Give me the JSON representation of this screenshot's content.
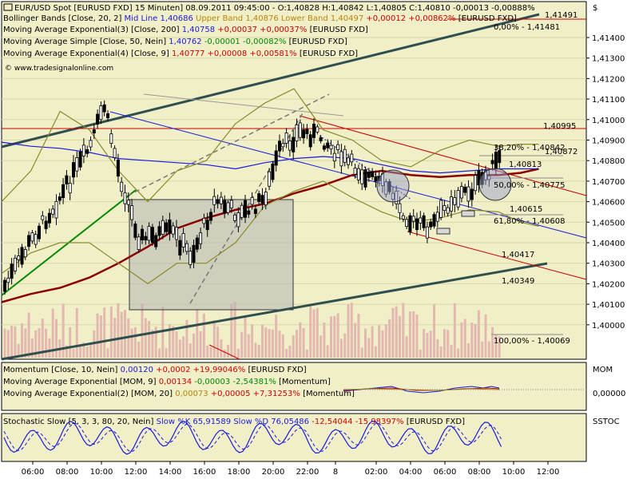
{
  "header": {
    "title": "EUR/USD Spot [EURUSD FXD]  15 Minuten] 08.09.2011 09:45:00 - O:1,40828 H:1,40842 L:1,40805 C:1,40810 -0,00013 -0,00888%",
    "legend": [
      {
        "prefix": "Bollinger Bands [Close, 20, 2] ",
        "parts": [
          {
            "text": "Mid Line 1,40686 ",
            "color": "#1a1adc"
          },
          {
            "text": "Upper Band 1,40876 ",
            "color": "#b8860b"
          },
          {
            "text": "Lower Band 1,40497 ",
            "color": "#b8860b"
          },
          {
            "text": "+0,00012 +0,00862% ",
            "color": "#cc0000"
          },
          {
            "text": "[EURUSD FXD]",
            "color": "#000000"
          }
        ]
      },
      {
        "prefix": "Moving Average Exponential(3) [Close, 200] ",
        "parts": [
          {
            "text": "1,40758 ",
            "color": "#1a1adc"
          },
          {
            "text": "+0,00037 +0,00037% ",
            "color": "#cc0000"
          },
          {
            "text": "[EURUSD FXD]",
            "color": "#000000"
          }
        ]
      },
      {
        "prefix": "Moving Average Simple [Close, 50, Nein] ",
        "parts": [
          {
            "text": "1,40762 ",
            "color": "#1a1adc"
          },
          {
            "text": "-0,00001 -0,00082% ",
            "color": "#008800"
          },
          {
            "text": "[EURUSD FXD]",
            "color": "#000000"
          }
        ]
      },
      {
        "prefix": "Moving Average Exponential(4) [Close, 9] ",
        "parts": [
          {
            "text": "1,40777 ",
            "color": "#cc0000"
          },
          {
            "text": "+0,00008 +0,00581% ",
            "color": "#cc0000"
          },
          {
            "text": "[EURUSD FXD]",
            "color": "#000000"
          }
        ]
      }
    ],
    "watermark": "© www.tradesignalonline.com",
    "currency": "$"
  },
  "price_axis_labels": [
    "1,41400",
    "1,41300",
    "1,41200",
    "1,41100",
    "1,41000",
    "1,40900",
    "1,40800",
    "1,40700",
    "1,40600",
    "1,40500",
    "1,40400",
    "1,40300",
    "1,40200",
    "1,40100",
    "1,40000"
  ],
  "price_badges": [
    {
      "text": "1,41491",
      "color": "#cc0000"
    },
    {
      "text": "1,40995",
      "color": "#cc0000"
    },
    {
      "text": "1,40872",
      "color": "#000000"
    },
    {
      "text": "1,40813",
      "color": "#cc0000"
    },
    {
      "text": "1,40615",
      "color": "#1a1adc"
    },
    {
      "text": "1,40417",
      "color": "#cc0000"
    },
    {
      "text": "1,40349",
      "color": "#000000"
    }
  ],
  "fib_labels": [
    {
      "text": "38,20% - 1,40842"
    },
    {
      "text": "50,00% - 1,40775"
    },
    {
      "text": "61,80% - 1,40608"
    },
    {
      "text": "100,00% - 1,40069"
    },
    {
      "text": "0,00% - 1,41481"
    }
  ],
  "momentum": {
    "title": "Momentum [Close, 10, Nein] ",
    "parts": [
      {
        "text": "0,00120 ",
        "color": "#1a1adc"
      },
      {
        "text": "+0,0002 +19,99046% ",
        "color": "#cc0000"
      },
      {
        "text": "[EURUSD FXD]",
        "color": "#000000"
      }
    ],
    "line2_prefix": "Moving Average Exponential [MOM, 9] ",
    "line2_parts": [
      {
        "text": "0,00134 ",
        "color": "#cc0000"
      },
      {
        "text": "-0,00003 -2,54381% ",
        "color": "#008800"
      },
      {
        "text": "[Momentum]",
        "color": "#000000"
      }
    ],
    "line3_prefix": "Moving Average Exponential(2) [MOM, 20] ",
    "line3_parts": [
      {
        "text": "0,00073 ",
        "color": "#b8860b"
      },
      {
        "text": "+0,00005 +7,31253% ",
        "color": "#cc0000"
      },
      {
        "text": "[Momentum]",
        "color": "#000000"
      }
    ],
    "axis_label": "MOM",
    "zero_label": "0,00000"
  },
  "stochastic": {
    "title": "Stochastic Slow [5, 3, 3, 80, 20, Nein] ",
    "parts": [
      {
        "text": "Slow %K 65,91589 ",
        "color": "#1a1adc"
      },
      {
        "text": "Slow %D 76,05486 ",
        "color": "#1a1adc"
      },
      {
        "text": "-12,54044 -15,98397% ",
        "color": "#cc0000"
      },
      {
        "text": "[EURUSD FXD]",
        "color": "#000000"
      }
    ],
    "axis_label": "SSTOC"
  },
  "time_axis": [
    "06:00",
    "08:00",
    "10:00",
    "12:00",
    "14:00",
    "16:00",
    "18:00",
    "20:00",
    "22:00",
    "8",
    "02:00",
    "04:00",
    "06:00",
    "08:00",
    "10:00",
    "12:00"
  ],
  "chart_data": {
    "type": "line",
    "series": [
      {
        "name": "Moving Average Exponential(3) [Close, 200]",
        "color": "#8b0000",
        "x": [
          0,
          8,
          16,
          24,
          32,
          40,
          48,
          56,
          64,
          72,
          80,
          88,
          96,
          104,
          112,
          120,
          128,
          136,
          142,
          147
        ],
        "values": [
          1.4011,
          1.4015,
          1.4018,
          1.4023,
          1.403,
          1.4038,
          1.4047,
          1.4052,
          1.4056,
          1.4059,
          1.4064,
          1.4068,
          1.4073,
          1.4075,
          1.4073,
          1.4072,
          1.4073,
          1.4073,
          1.4074,
          1.4076
        ]
      },
      {
        "name": "Moving Average Simple [Close, 50]",
        "color": "#1a1adc",
        "x": [
          0,
          8,
          16,
          24,
          32,
          40,
          48,
          56,
          64,
          72,
          80,
          88,
          96,
          104,
          112,
          120,
          128,
          136,
          142,
          147
        ],
        "values": [
          1.4089,
          1.4087,
          1.4086,
          1.4084,
          1.4081,
          1.408,
          1.4079,
          1.4078,
          1.4076,
          1.4079,
          1.4081,
          1.4082,
          1.4081,
          1.4078,
          1.4075,
          1.4074,
          1.4075,
          1.4076,
          1.4076,
          1.4076
        ]
      },
      {
        "name": "Bollinger Upper Band",
        "color": "#8b8b2a",
        "x": [
          0,
          8,
          16,
          24,
          32,
          40,
          48,
          56,
          64,
          72,
          80,
          88,
          96,
          104,
          112,
          120,
          128,
          136,
          142,
          147
        ],
        "values": [
          1.406,
          1.4075,
          1.4104,
          1.4095,
          1.4075,
          1.406,
          1.4075,
          1.408,
          1.4098,
          1.4108,
          1.4115,
          1.4095,
          1.409,
          1.408,
          1.4077,
          1.4085,
          1.409,
          1.4087,
          1.4088,
          1.4088
        ]
      },
      {
        "name": "Bollinger Lower Band",
        "color": "#8b8b2a",
        "x": [
          0,
          8,
          16,
          24,
          32,
          40,
          48,
          56,
          64,
          72,
          80,
          88,
          96,
          104,
          112,
          120,
          128,
          136,
          142,
          147
        ],
        "values": [
          1.4025,
          1.4035,
          1.404,
          1.404,
          1.403,
          1.402,
          1.403,
          1.403,
          1.404,
          1.4058,
          1.4065,
          1.407,
          1.4062,
          1.4055,
          1.405,
          1.4052,
          1.4056,
          1.4055,
          1.405,
          1.4048
        ]
      }
    ],
    "ylim": [
      1.4,
      1.415
    ],
    "xlim": [
      0,
      160
    ]
  }
}
